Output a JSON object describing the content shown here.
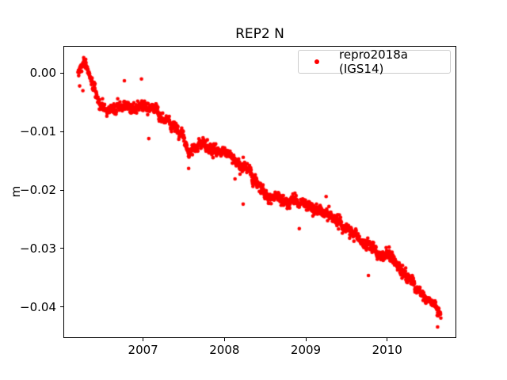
{
  "figure": {
    "title": "REP2 N",
    "ylabel": "m",
    "background": "#ffffff",
    "accent_color": "#ff0000"
  },
  "legend": {
    "position": "upper right",
    "entries": [
      {
        "label": "repro2018a (IGS14)",
        "marker": "dot-icon",
        "color": "#ff0000"
      }
    ]
  },
  "chart_data": {
    "type": "scatter",
    "title": "REP2 N",
    "xlabel": "",
    "ylabel": "m",
    "grid": false,
    "legend_position": "upper right",
    "xlim": [
      2006.02,
      2010.85
    ],
    "ylim": [
      -0.0453,
      0.00465
    ],
    "xticks": [
      2007,
      2008,
      2009,
      2010
    ],
    "xtick_labels": [
      "2007",
      "2008",
      "2009",
      "2010"
    ],
    "yticks": [
      0.0,
      -0.01,
      -0.02,
      -0.03,
      -0.04
    ],
    "ytick_labels": [
      "0.00",
      "−0.01",
      "−0.02",
      "−0.03",
      "−0.04"
    ],
    "series": [
      {
        "name": "repro2018a (IGS14)",
        "color": "#ff0000",
        "marker": "dot",
        "marker_radius_px": 2.3,
        "t_start": 2006.2,
        "t_end": 2010.66,
        "n_points": 1600,
        "seed": 7,
        "noise_white_std": 0.0004,
        "noise_ar_coef": 0.93,
        "noise_ar_innov": 0.00015,
        "trend_anchors": [
          [
            2006.2,
            -0.0002
          ],
          [
            2006.24,
            0.0006
          ],
          [
            2006.29,
            0.0013
          ],
          [
            2006.33,
            0.0002
          ],
          [
            2006.38,
            -0.0018
          ],
          [
            2006.44,
            -0.0038
          ],
          [
            2006.5,
            -0.0051
          ],
          [
            2006.6,
            -0.0058
          ],
          [
            2006.72,
            -0.006
          ],
          [
            2006.85,
            -0.0057
          ],
          [
            2007.0,
            -0.0058
          ],
          [
            2007.12,
            -0.0062
          ],
          [
            2007.22,
            -0.0071
          ],
          [
            2007.32,
            -0.0084
          ],
          [
            2007.42,
            -0.0101
          ],
          [
            2007.5,
            -0.0119
          ],
          [
            2007.56,
            -0.0143
          ],
          [
            2007.63,
            -0.0124
          ],
          [
            2007.72,
            -0.0124
          ],
          [
            2007.85,
            -0.0131
          ],
          [
            2008.0,
            -0.0134
          ],
          [
            2008.1,
            -0.0143
          ],
          [
            2008.22,
            -0.0159
          ],
          [
            2008.34,
            -0.0176
          ],
          [
            2008.46,
            -0.0199
          ],
          [
            2008.56,
            -0.0213
          ],
          [
            2008.65,
            -0.0201
          ],
          [
            2008.75,
            -0.0215
          ],
          [
            2008.88,
            -0.0219
          ],
          [
            2009.0,
            -0.0226
          ],
          [
            2009.12,
            -0.023
          ],
          [
            2009.25,
            -0.0241
          ],
          [
            2009.4,
            -0.0259
          ],
          [
            2009.55,
            -0.0272
          ],
          [
            2009.7,
            -0.0285
          ],
          [
            2009.85,
            -0.0298
          ],
          [
            2009.95,
            -0.0306
          ],
          [
            2010.05,
            -0.0315
          ],
          [
            2010.15,
            -0.033
          ],
          [
            2010.25,
            -0.0352
          ],
          [
            2010.38,
            -0.0368
          ],
          [
            2010.5,
            -0.0386
          ],
          [
            2010.58,
            -0.04
          ],
          [
            2010.66,
            -0.0414
          ]
        ],
        "outliers": [
          [
            2006.22,
            -0.0022
          ],
          [
            2006.26,
            -0.003
          ],
          [
            2006.77,
            -0.0013
          ],
          [
            2006.98,
            -0.001
          ],
          [
            2007.07,
            -0.0112
          ],
          [
            2007.56,
            -0.0163
          ],
          [
            2008.13,
            -0.0181
          ],
          [
            2008.23,
            -0.0224
          ],
          [
            2008.92,
            -0.0266
          ],
          [
            2009.25,
            -0.0211
          ],
          [
            2009.77,
            -0.0346
          ],
          [
            2010.62,
            -0.0434
          ]
        ]
      }
    ]
  }
}
